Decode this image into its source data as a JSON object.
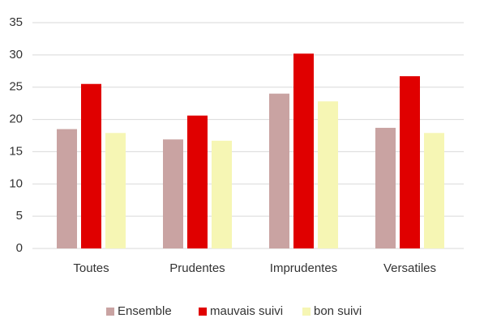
{
  "chart_data": {
    "type": "bar",
    "categories": [
      "Toutes",
      "Prudentes",
      "Imprudentes",
      "Versatiles"
    ],
    "series": [
      {
        "name": "Ensemble",
        "color": "#c9a3a2",
        "values": [
          18.5,
          16.9,
          24.0,
          18.7
        ]
      },
      {
        "name": "mauvais suivi",
        "color": "#e00000",
        "values": [
          25.5,
          20.6,
          30.2,
          26.7
        ]
      },
      {
        "name": "bon suivi",
        "color": "#f6f6b4",
        "values": [
          17.9,
          16.7,
          22.8,
          17.9
        ]
      }
    ],
    "ylim": [
      0,
      35
    ],
    "yticks": [
      0,
      5,
      10,
      15,
      20,
      25,
      30,
      35
    ],
    "grid": true,
    "legend": "bottom"
  }
}
